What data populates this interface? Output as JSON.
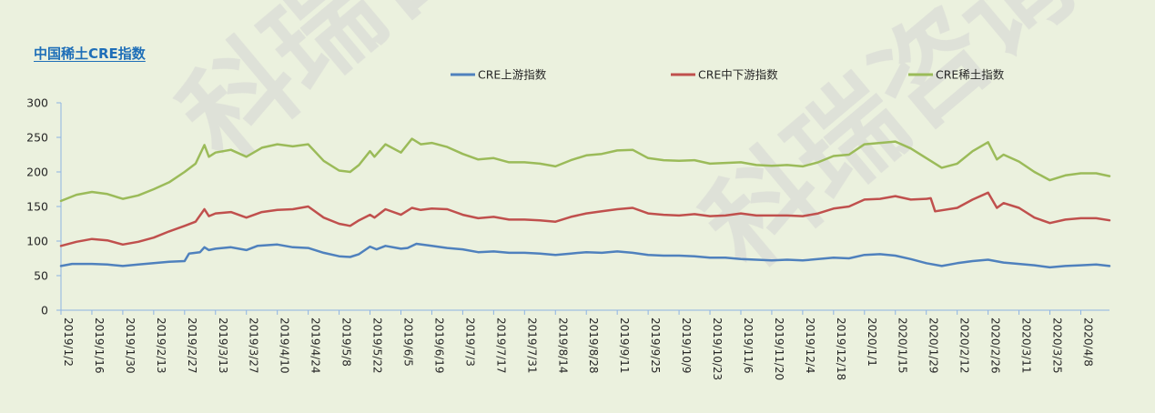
{
  "chart_data": {
    "type": "line",
    "title": "中国稀土CRE指数",
    "xlabel": "",
    "ylabel": "",
    "ylim": [
      0,
      300
    ],
    "yticks": [
      0,
      50,
      100,
      150,
      200,
      250,
      300
    ],
    "grid": false,
    "legend_position": "top",
    "x_start": "2019/1/2",
    "x_end": "2020/4/21",
    "xtick_labels": [
      "2019/1/2",
      "2019/1/16",
      "2019/1/30",
      "2019/2/13",
      "2019/2/27",
      "2019/3/13",
      "2019/3/27",
      "2019/4/10",
      "2019/4/24",
      "2019/5/8",
      "2019/5/22",
      "2019/6/5",
      "2019/6/19",
      "2019/7/3",
      "2019/7/17",
      "2019/7/31",
      "2019/8/14",
      "2019/8/28",
      "2019/9/11",
      "2019/9/25",
      "2019/10/9",
      "2019/10/23",
      "2019/11/6",
      "2019/11/20",
      "2019/12/4",
      "2019/12/18",
      "2020/1/1",
      "2020/1/15",
      "2020/1/29",
      "2020/2/12",
      "2020/2/26",
      "2020/3/11",
      "2020/3/25",
      "2020/4/8"
    ],
    "series": [
      {
        "name": "CRE上游指数",
        "color": "#4f81bd",
        "points": [
          [
            "2019/1/2",
            64
          ],
          [
            "2019/1/7",
            67
          ],
          [
            "2019/1/16",
            67
          ],
          [
            "2019/1/23",
            66
          ],
          [
            "2019/1/30",
            64
          ],
          [
            "2019/2/6",
            66
          ],
          [
            "2019/2/13",
            68
          ],
          [
            "2019/2/20",
            70
          ],
          [
            "2019/2/27",
            71
          ],
          [
            "2019/3/1",
            82
          ],
          [
            "2019/3/6",
            84
          ],
          [
            "2019/3/8",
            91
          ],
          [
            "2019/3/10",
            87
          ],
          [
            "2019/3/13",
            89
          ],
          [
            "2019/3/20",
            91
          ],
          [
            "2019/3/27",
            87
          ],
          [
            "2019/4/1",
            93
          ],
          [
            "2019/4/10",
            95
          ],
          [
            "2019/4/17",
            91
          ],
          [
            "2019/4/24",
            90
          ],
          [
            "2019/5/1",
            83
          ],
          [
            "2019/5/8",
            78
          ],
          [
            "2019/5/13",
            77
          ],
          [
            "2019/5/17",
            81
          ],
          [
            "2019/5/22",
            92
          ],
          [
            "2019/5/25",
            88
          ],
          [
            "2019/5/29",
            93
          ],
          [
            "2019/6/5",
            89
          ],
          [
            "2019/6/8",
            90
          ],
          [
            "2019/6/12",
            96
          ],
          [
            "2019/6/19",
            93
          ],
          [
            "2019/6/26",
            90
          ],
          [
            "2019/7/3",
            88
          ],
          [
            "2019/7/10",
            84
          ],
          [
            "2019/7/17",
            85
          ],
          [
            "2019/7/24",
            83
          ],
          [
            "2019/7/31",
            83
          ],
          [
            "2019/8/7",
            82
          ],
          [
            "2019/8/14",
            80
          ],
          [
            "2019/8/21",
            82
          ],
          [
            "2019/8/28",
            84
          ],
          [
            "2019/9/4",
            83
          ],
          [
            "2019/9/11",
            85
          ],
          [
            "2019/9/18",
            83
          ],
          [
            "2019/9/25",
            80
          ],
          [
            "2019/10/2",
            79
          ],
          [
            "2019/10/9",
            79
          ],
          [
            "2019/10/16",
            78
          ],
          [
            "2019/10/23",
            76
          ],
          [
            "2019/10/30",
            76
          ],
          [
            "2019/11/6",
            74
          ],
          [
            "2019/11/13",
            73
          ],
          [
            "2019/11/20",
            72
          ],
          [
            "2019/11/27",
            73
          ],
          [
            "2019/12/4",
            72
          ],
          [
            "2019/12/11",
            74
          ],
          [
            "2019/12/18",
            76
          ],
          [
            "2019/12/25",
            75
          ],
          [
            "2020/1/1",
            80
          ],
          [
            "2020/1/8",
            81
          ],
          [
            "2020/1/15",
            79
          ],
          [
            "2020/1/22",
            74
          ],
          [
            "2020/1/29",
            68
          ],
          [
            "2020/2/5",
            64
          ],
          [
            "2020/2/12",
            68
          ],
          [
            "2020/2/19",
            71
          ],
          [
            "2020/2/26",
            73
          ],
          [
            "2020/3/4",
            69
          ],
          [
            "2020/3/11",
            67
          ],
          [
            "2020/3/18",
            65
          ],
          [
            "2020/3/25",
            62
          ],
          [
            "2020/4/1",
            64
          ],
          [
            "2020/4/8",
            65
          ],
          [
            "2020/4/15",
            66
          ],
          [
            "2020/4/21",
            64
          ]
        ]
      },
      {
        "name": "CRE中下游指数",
        "color": "#c0504d",
        "points": [
          [
            "2019/1/2",
            93
          ],
          [
            "2019/1/9",
            99
          ],
          [
            "2019/1/16",
            103
          ],
          [
            "2019/1/23",
            101
          ],
          [
            "2019/1/30",
            95
          ],
          [
            "2019/2/6",
            99
          ],
          [
            "2019/2/13",
            105
          ],
          [
            "2019/2/20",
            114
          ],
          [
            "2019/2/27",
            122
          ],
          [
            "2019/3/4",
            128
          ],
          [
            "2019/3/8",
            146
          ],
          [
            "2019/3/10",
            136
          ],
          [
            "2019/3/13",
            140
          ],
          [
            "2019/3/20",
            142
          ],
          [
            "2019/3/27",
            134
          ],
          [
            "2019/4/3",
            142
          ],
          [
            "2019/4/10",
            145
          ],
          [
            "2019/4/17",
            146
          ],
          [
            "2019/4/24",
            150
          ],
          [
            "2019/5/1",
            134
          ],
          [
            "2019/5/8",
            125
          ],
          [
            "2019/5/13",
            122
          ],
          [
            "2019/5/17",
            130
          ],
          [
            "2019/5/22",
            138
          ],
          [
            "2019/5/24",
            134
          ],
          [
            "2019/5/29",
            146
          ],
          [
            "2019/6/5",
            138
          ],
          [
            "2019/6/10",
            148
          ],
          [
            "2019/6/14",
            145
          ],
          [
            "2019/6/19",
            147
          ],
          [
            "2019/6/26",
            146
          ],
          [
            "2019/7/3",
            138
          ],
          [
            "2019/7/10",
            133
          ],
          [
            "2019/7/17",
            135
          ],
          [
            "2019/7/24",
            131
          ],
          [
            "2019/7/31",
            131
          ],
          [
            "2019/8/7",
            130
          ],
          [
            "2019/8/14",
            128
          ],
          [
            "2019/8/21",
            135
          ],
          [
            "2019/8/28",
            140
          ],
          [
            "2019/9/4",
            143
          ],
          [
            "2019/9/11",
            146
          ],
          [
            "2019/9/18",
            148
          ],
          [
            "2019/9/25",
            140
          ],
          [
            "2019/10/2",
            138
          ],
          [
            "2019/10/9",
            137
          ],
          [
            "2019/10/16",
            139
          ],
          [
            "2019/10/23",
            136
          ],
          [
            "2019/10/30",
            137
          ],
          [
            "2019/11/6",
            140
          ],
          [
            "2019/11/13",
            137
          ],
          [
            "2019/11/20",
            137
          ],
          [
            "2019/11/27",
            137
          ],
          [
            "2019/12/4",
            136
          ],
          [
            "2019/12/11",
            140
          ],
          [
            "2019/12/18",
            147
          ],
          [
            "2019/12/25",
            150
          ],
          [
            "2020/1/1",
            160
          ],
          [
            "2020/1/8",
            161
          ],
          [
            "2020/1/15",
            165
          ],
          [
            "2020/1/22",
            160
          ],
          [
            "2020/1/29",
            161
          ],
          [
            "2020/1/31",
            162
          ],
          [
            "2020/2/2",
            143
          ],
          [
            "2020/2/12",
            148
          ],
          [
            "2020/2/19",
            160
          ],
          [
            "2020/2/26",
            170
          ],
          [
            "2020/3/1",
            148
          ],
          [
            "2020/3/4",
            155
          ],
          [
            "2020/3/11",
            148
          ],
          [
            "2020/3/18",
            134
          ],
          [
            "2020/3/25",
            126
          ],
          [
            "2020/4/1",
            131
          ],
          [
            "2020/4/8",
            133
          ],
          [
            "2020/4/15",
            133
          ],
          [
            "2020/4/21",
            130
          ]
        ]
      },
      {
        "name": "CRE稀土指数",
        "color": "#9bbb59",
        "points": [
          [
            "2019/1/2",
            158
          ],
          [
            "2019/1/9",
            167
          ],
          [
            "2019/1/16",
            171
          ],
          [
            "2019/1/23",
            168
          ],
          [
            "2019/1/30",
            161
          ],
          [
            "2019/2/6",
            166
          ],
          [
            "2019/2/13",
            175
          ],
          [
            "2019/2/20",
            185
          ],
          [
            "2019/2/27",
            200
          ],
          [
            "2019/3/4",
            212
          ],
          [
            "2019/3/8",
            239
          ],
          [
            "2019/3/10",
            222
          ],
          [
            "2019/3/13",
            228
          ],
          [
            "2019/3/20",
            232
          ],
          [
            "2019/3/27",
            222
          ],
          [
            "2019/4/3",
            235
          ],
          [
            "2019/4/10",
            240
          ],
          [
            "2019/4/17",
            237
          ],
          [
            "2019/4/24",
            240
          ],
          [
            "2019/5/1",
            216
          ],
          [
            "2019/5/8",
            202
          ],
          [
            "2019/5/13",
            200
          ],
          [
            "2019/5/17",
            210
          ],
          [
            "2019/5/22",
            230
          ],
          [
            "2019/5/24",
            222
          ],
          [
            "2019/5/29",
            240
          ],
          [
            "2019/6/5",
            228
          ],
          [
            "2019/6/10",
            248
          ],
          [
            "2019/6/14",
            240
          ],
          [
            "2019/6/19",
            242
          ],
          [
            "2019/6/26",
            236
          ],
          [
            "2019/7/3",
            226
          ],
          [
            "2019/7/10",
            218
          ],
          [
            "2019/7/17",
            220
          ],
          [
            "2019/7/24",
            214
          ],
          [
            "2019/7/31",
            214
          ],
          [
            "2019/8/7",
            212
          ],
          [
            "2019/8/14",
            208
          ],
          [
            "2019/8/21",
            217
          ],
          [
            "2019/8/28",
            224
          ],
          [
            "2019/9/4",
            226
          ],
          [
            "2019/9/11",
            231
          ],
          [
            "2019/9/18",
            232
          ],
          [
            "2019/9/25",
            220
          ],
          [
            "2019/10/2",
            217
          ],
          [
            "2019/10/9",
            216
          ],
          [
            "2019/10/16",
            217
          ],
          [
            "2019/10/23",
            212
          ],
          [
            "2019/10/30",
            213
          ],
          [
            "2019/11/6",
            214
          ],
          [
            "2019/11/13",
            210
          ],
          [
            "2019/11/20",
            209
          ],
          [
            "2019/11/27",
            210
          ],
          [
            "2019/12/4",
            208
          ],
          [
            "2019/12/11",
            214
          ],
          [
            "2019/12/18",
            223
          ],
          [
            "2019/12/25",
            225
          ],
          [
            "2020/1/1",
            240
          ],
          [
            "2020/1/8",
            242
          ],
          [
            "2020/1/15",
            244
          ],
          [
            "2020/1/22",
            234
          ],
          [
            "2020/1/29",
            220
          ],
          [
            "2020/2/5",
            206
          ],
          [
            "2020/2/12",
            212
          ],
          [
            "2020/2/19",
            230
          ],
          [
            "2020/2/26",
            243
          ],
          [
            "2020/3/1",
            218
          ],
          [
            "2020/3/4",
            225
          ],
          [
            "2020/3/11",
            215
          ],
          [
            "2020/3/18",
            200
          ],
          [
            "2020/3/25",
            188
          ],
          [
            "2020/4/1",
            195
          ],
          [
            "2020/4/8",
            198
          ],
          [
            "2020/4/15",
            198
          ],
          [
            "2020/4/21",
            194
          ]
        ]
      }
    ]
  },
  "watermark": {
    "text": "科瑞咨询",
    "color": "#d0d0d0"
  },
  "colors": {
    "background": "#ebf1de",
    "title": "#1f6fb8",
    "axis": "#8eb4e3"
  }
}
